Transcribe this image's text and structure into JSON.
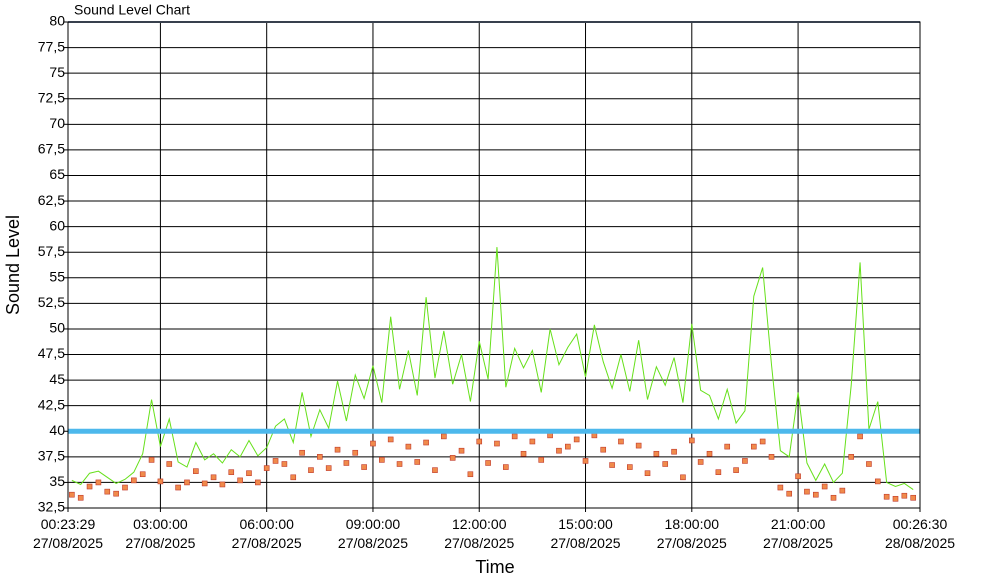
{
  "chart_data": {
    "type": "line",
    "title": "Sound Level Chart",
    "x_label": "Time",
    "y_label": "Sound Level",
    "xlim": [
      0.3914,
      24.4417
    ],
    "xticks": [
      {
        "value": 0.3914,
        "label": "00:23:29\n27/08/2025"
      },
      {
        "value": 3,
        "label": "03:00:00\n27/08/2025"
      },
      {
        "value": 6,
        "label": "06:00:00\n27/08/2025"
      },
      {
        "value": 9,
        "label": "09:00:00\n27/08/2025"
      },
      {
        "value": 12,
        "label": "12:00:00\n27/08/2025"
      },
      {
        "value": 15,
        "label": "15:00:00\n27/08/2025"
      },
      {
        "value": 18,
        "label": "18:00:00\n27/08/2025"
      },
      {
        "value": 21,
        "label": "21:00:00\n27/08/2025"
      },
      {
        "value": 24.4417,
        "label": "00:26:30\n28/08/2025"
      }
    ],
    "ylim": [
      32.5,
      80
    ],
    "yticks": [
      {
        "value": 32.5,
        "label": "32,5"
      },
      35,
      {
        "value": 37.5,
        "label": "37,5"
      },
      40,
      {
        "value": 42.5,
        "label": "42,5"
      },
      45,
      {
        "value": 47.5,
        "label": "47,5"
      },
      50,
      {
        "value": 52.5,
        "label": "52,5"
      },
      55,
      {
        "value": 57.5,
        "label": "57,5"
      },
      60,
      {
        "value": 62.5,
        "label": "62,5"
      },
      65,
      {
        "value": 67.5,
        "label": "67,5"
      },
      70,
      {
        "value": 72.5,
        "label": "72,5"
      },
      75,
      {
        "value": 77.5,
        "label": "77,5"
      },
      80
    ],
    "grid": true,
    "reference_line": {
      "value": 40,
      "color": "#4db8ec"
    },
    "top_line_color": "#6f7f9a",
    "x": [
      0.5,
      0.75,
      1,
      1.25,
      1.5,
      1.75,
      2,
      2.25,
      2.5,
      2.75,
      3,
      3.25,
      3.5,
      3.75,
      4,
      4.25,
      4.5,
      4.75,
      5,
      5.25,
      5.5,
      5.75,
      6,
      6.25,
      6.5,
      6.75,
      7,
      7.25,
      7.5,
      7.75,
      8,
      8.25,
      8.5,
      8.75,
      9,
      9.25,
      9.5,
      9.75,
      10,
      10.25,
      10.5,
      10.75,
      11,
      11.25,
      11.5,
      11.75,
      12,
      12.25,
      12.5,
      12.75,
      13,
      13.25,
      13.5,
      13.75,
      14,
      14.25,
      14.5,
      14.75,
      15,
      15.25,
      15.5,
      15.75,
      16,
      16.25,
      16.5,
      16.75,
      17,
      17.25,
      17.5,
      17.75,
      18,
      18.25,
      18.5,
      18.75,
      19,
      19.25,
      19.5,
      19.75,
      20,
      20.25,
      20.5,
      20.75,
      21,
      21.25,
      21.5,
      21.75,
      22,
      22.25,
      22.5,
      22.75,
      23,
      23.25,
      23.5,
      23.75,
      24,
      24.25
    ],
    "series": [
      {
        "color": "#66e01a",
        "markers": false,
        "values": [
          35.2,
          34.8,
          35.9,
          36.1,
          35.5,
          34.9,
          35.3,
          36.0,
          37.8,
          43.1,
          38.5,
          41.2,
          37.0,
          36.5,
          38.9,
          37.2,
          37.8,
          36.9,
          38.2,
          37.5,
          39.1,
          37.6,
          38.4,
          40.5,
          41.2,
          38.9,
          43.8,
          39.5,
          42.1,
          40.3,
          44.9,
          41.0,
          45.5,
          43.2,
          46.4,
          42.8,
          51.2,
          44.1,
          47.9,
          43.5,
          53.1,
          45.2,
          49.8,
          44.6,
          47.5,
          42.9,
          48.8,
          45.1,
          58.0,
          44.3,
          48.1,
          46.2,
          47.9,
          43.8,
          50.0,
          46.5,
          48.2,
          49.5,
          45.3,
          50.4,
          46.8,
          44.2,
          47.5,
          43.9,
          48.9,
          43.1,
          46.3,
          44.5,
          47.2,
          42.8,
          50.5,
          44.0,
          43.5,
          41.2,
          44.1,
          40.8,
          42.0,
          53.2,
          56.0,
          46.5,
          38.1,
          37.5,
          43.8,
          36.9,
          35.2,
          36.8,
          35.0,
          35.9,
          44.5,
          56.5,
          40.2,
          42.9,
          35.0,
          34.6,
          34.9,
          34.3
        ]
      },
      {
        "color": "#f08a4b",
        "markers": true,
        "values": [
          33.8,
          33.5,
          34.6,
          35.0,
          34.1,
          33.9,
          34.5,
          35.2,
          35.8,
          37.2,
          35.1,
          36.8,
          34.5,
          35.0,
          36.1,
          34.9,
          35.5,
          34.8,
          36.0,
          35.2,
          35.9,
          35.0,
          36.4,
          37.1,
          36.8,
          35.5,
          37.9,
          36.2,
          37.5,
          36.4,
          38.2,
          36.9,
          37.9,
          36.5,
          38.8,
          37.2,
          39.2,
          36.8,
          38.5,
          37.0,
          38.9,
          36.2,
          39.5,
          37.4,
          38.1,
          35.8,
          39.0,
          36.9,
          38.8,
          36.5,
          39.5,
          37.8,
          39.0,
          37.2,
          39.6,
          38.1,
          38.5,
          39.2,
          37.1,
          39.6,
          38.2,
          36.7,
          39.0,
          36.5,
          38.6,
          35.9,
          37.8,
          36.8,
          38.0,
          35.5,
          39.1,
          37.0,
          37.8,
          36.0,
          38.5,
          36.2,
          37.1,
          38.5,
          39.0,
          37.5,
          34.5,
          33.9,
          35.6,
          34.1,
          33.8,
          34.6,
          33.5,
          34.2,
          37.5,
          39.5,
          36.8,
          35.1,
          33.6,
          33.4,
          33.7,
          33.5
        ]
      }
    ]
  }
}
